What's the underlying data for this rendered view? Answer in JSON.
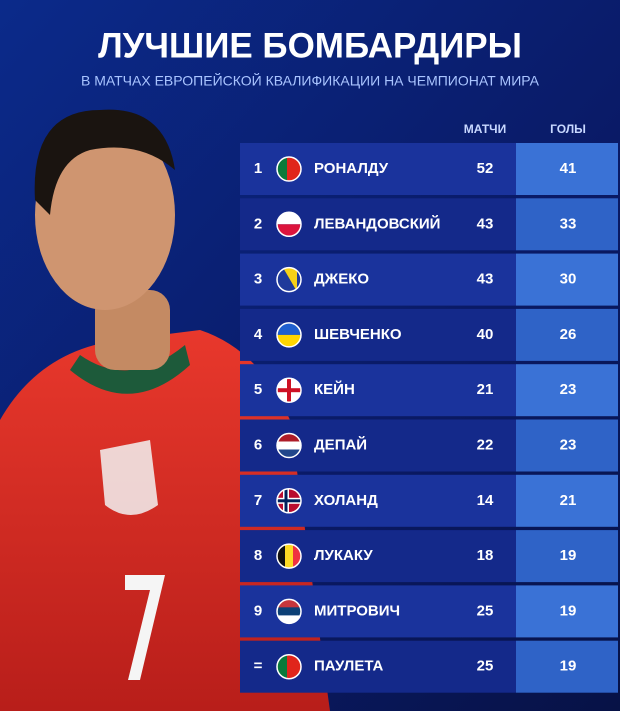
{
  "header": {
    "title": "ЛУЧШИЕ БОМБАРДИРЫ",
    "subtitle": "В МАТЧАХ ЕВРОПЕЙСКОЙ КВАЛИФИКАЦИИ НА ЧЕМПИОНАТ МИРА"
  },
  "table": {
    "columns": [
      "МАТЧИ",
      "ГОЛЫ"
    ],
    "rows": [
      [
        1,
        "РОНАЛДУ",
        52,
        41
      ],
      [
        2,
        "ЛЕВАНДОВСКИЙ",
        43,
        33
      ],
      [
        3,
        "ДЖЕКО",
        43,
        30
      ],
      [
        4,
        "ШЕВЧЕНКО",
        40,
        26
      ],
      [
        5,
        "КЕЙН",
        21,
        23
      ],
      [
        6,
        "ДЕПАЙ",
        22,
        23
      ],
      [
        7,
        "ХОЛАНД",
        14,
        21
      ],
      [
        8,
        "ЛУКАКУ",
        18,
        19
      ],
      [
        9,
        "МИТРОВИЧ",
        25,
        19
      ],
      [
        "=",
        "ПАУЛЕТА",
        25,
        19
      ]
    ]
  }
}
